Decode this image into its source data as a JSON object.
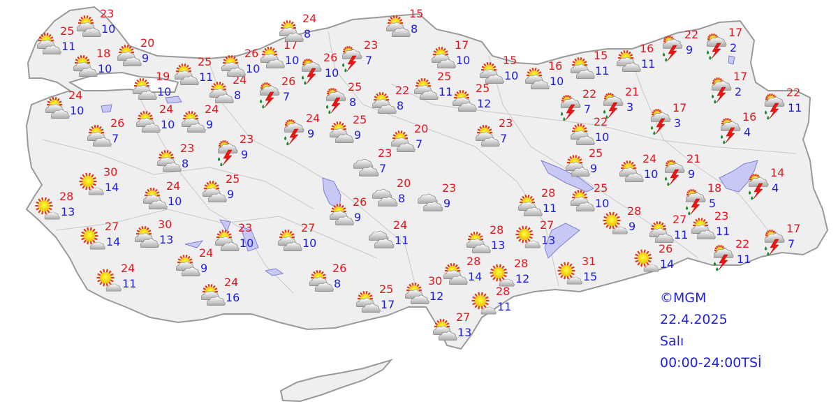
{
  "legend": {
    "copyright": "©MGM",
    "date": "22.4.2025",
    "day": "Salı",
    "period": "00:00-24:00TSİ"
  },
  "colors": {
    "max_temp": "#e3171f",
    "min_temp": "#1b1be3",
    "land": "#efefef",
    "water": "#c8c8f4"
  },
  "icon_types": [
    "partly-cloudy",
    "mostly-sunny",
    "thunderstorm-rain",
    "cloudy"
  ],
  "stations": [
    {
      "icon": "partly-cloudy",
      "max": 23,
      "min": 10
    },
    {
      "icon": "partly-cloudy",
      "max": 25,
      "min": 11
    },
    {
      "icon": "partly-cloudy",
      "max": 18,
      "min": 10
    },
    {
      "icon": "partly-cloudy",
      "max": 20,
      "min": 9
    },
    {
      "icon": "partly-cloudy",
      "max": 25,
      "min": 11
    },
    {
      "icon": "partly-cloudy",
      "max": 19,
      "min": 10
    },
    {
      "icon": "partly-cloudy",
      "max": 24,
      "min": 10
    },
    {
      "icon": "partly-cloudy",
      "max": 26,
      "min": 7
    },
    {
      "icon": "partly-cloudy",
      "max": 24,
      "min": 10
    },
    {
      "icon": "partly-cloudy",
      "max": 24,
      "min": 9
    },
    {
      "icon": "partly-cloudy",
      "max": 24,
      "min": 8
    },
    {
      "icon": "partly-cloudy",
      "max": 26,
      "min": 10
    },
    {
      "icon": "partly-cloudy",
      "max": 17,
      "min": 10
    },
    {
      "icon": "partly-cloudy",
      "max": 24,
      "min": 8
    },
    {
      "icon": "thunderstorm-rain",
      "max": 26,
      "min": 10
    },
    {
      "icon": "thunderstorm-rain",
      "max": 26,
      "min": 7
    },
    {
      "icon": "thunderstorm-rain",
      "max": 23,
      "min": 7
    },
    {
      "icon": "thunderstorm-rain",
      "max": 23,
      "min": 9
    },
    {
      "icon": "thunderstorm-rain",
      "max": 24,
      "min": 9
    },
    {
      "icon": "thunderstorm-rain",
      "max": 25,
      "min": 8
    },
    {
      "icon": "partly-cloudy",
      "max": 15,
      "min": 8
    },
    {
      "icon": "partly-cloudy",
      "max": 22,
      "min": 8
    },
    {
      "icon": "partly-cloudy",
      "max": 25,
      "min": 9
    },
    {
      "icon": "partly-cloudy",
      "max": 20,
      "min": 7
    },
    {
      "icon": "partly-cloudy",
      "max": 25,
      "min": 11
    },
    {
      "icon": "partly-cloudy",
      "max": 25,
      "min": 12
    },
    {
      "icon": "partly-cloudy",
      "max": 17,
      "min": 10
    },
    {
      "icon": "partly-cloudy",
      "max": 15,
      "min": 10
    },
    {
      "icon": "partly-cloudy",
      "max": 23,
      "min": 7
    },
    {
      "icon": "partly-cloudy",
      "max": 16,
      "min": 10
    },
    {
      "icon": "partly-cloudy",
      "max": 15,
      "min": 11
    },
    {
      "icon": "partly-cloudy",
      "max": 16,
      "min": 11
    },
    {
      "icon": "thunderstorm-rain",
      "max": 22,
      "min": 9
    },
    {
      "icon": "thunderstorm-rain",
      "max": 17,
      "min": 2
    },
    {
      "icon": "thunderstorm-rain",
      "max": 22,
      "min": 7
    },
    {
      "icon": "thunderstorm-rain",
      "max": 21,
      "min": 3
    },
    {
      "icon": "thunderstorm-rain",
      "max": 17,
      "min": 3
    },
    {
      "icon": "thunderstorm-rain",
      "max": 17,
      "min": 2
    },
    {
      "icon": "thunderstorm-rain",
      "max": 22,
      "min": 11
    },
    {
      "icon": "thunderstorm-rain",
      "max": 16,
      "min": 4
    },
    {
      "icon": "partly-cloudy",
      "max": 22,
      "min": 10
    },
    {
      "icon": "partly-cloudy",
      "max": 25,
      "min": 9
    },
    {
      "icon": "partly-cloudy",
      "max": 24,
      "min": 10
    },
    {
      "icon": "thunderstorm-rain",
      "max": 21,
      "min": 9
    },
    {
      "icon": "thunderstorm-rain",
      "max": 18,
      "min": 5
    },
    {
      "icon": "thunderstorm-rain",
      "max": 14,
      "min": 4
    },
    {
      "icon": "partly-cloudy",
      "max": 25,
      "min": 10
    },
    {
      "icon": "partly-cloudy",
      "max": 28,
      "min": 11
    },
    {
      "icon": "mostly-sunny",
      "max": 28,
      "min": 9
    },
    {
      "icon": "partly-cloudy",
      "max": 27,
      "min": 11
    },
    {
      "icon": "partly-cloudy",
      "max": 23,
      "min": 11
    },
    {
      "icon": "thunderstorm-rain",
      "max": 22,
      "min": 11
    },
    {
      "icon": "thunderstorm-rain",
      "max": 17,
      "min": 7
    },
    {
      "icon": "mostly-sunny",
      "max": 26,
      "min": 14
    },
    {
      "icon": "mostly-sunny",
      "max": 27,
      "min": 13
    },
    {
      "icon": "partly-cloudy",
      "max": 28,
      "min": 13
    },
    {
      "icon": "mostly-sunny",
      "max": 28,
      "min": 12
    },
    {
      "icon": "partly-cloudy",
      "max": 28,
      "min": 14
    },
    {
      "icon": "mostly-sunny",
      "max": 31,
      "min": 15
    },
    {
      "icon": "mostly-sunny",
      "max": 28,
      "min": 11
    },
    {
      "icon": "partly-cloudy",
      "max": 30,
      "min": 12
    },
    {
      "icon": "partly-cloudy",
      "max": 25,
      "min": 17
    },
    {
      "icon": "partly-cloudy",
      "max": 27,
      "min": 13
    },
    {
      "icon": "partly-cloudy",
      "max": 26,
      "min": 8
    },
    {
      "icon": "cloudy",
      "max": 23,
      "min": 7
    },
    {
      "icon": "cloudy",
      "max": 20,
      "min": 8
    },
    {
      "icon": "cloudy",
      "max": 23,
      "min": 9
    },
    {
      "icon": "cloudy",
      "max": 24,
      "min": 11
    },
    {
      "icon": "partly-cloudy",
      "max": 26,
      "min": 9
    },
    {
      "icon": "partly-cloudy",
      "max": 27,
      "min": 10
    },
    {
      "icon": "partly-cloudy",
      "max": 23,
      "min": 10
    },
    {
      "icon": "partly-cloudy",
      "max": 25,
      "min": 9
    },
    {
      "icon": "partly-cloudy",
      "max": 24,
      "min": 10
    },
    {
      "icon": "partly-cloudy",
      "max": 23,
      "min": 8
    },
    {
      "icon": "mostly-sunny",
      "max": 30,
      "min": 14
    },
    {
      "icon": "mostly-sunny",
      "max": 28,
      "min": 13
    },
    {
      "icon": "partly-cloudy",
      "max": 30,
      "min": 13
    },
    {
      "icon": "mostly-sunny",
      "max": 27,
      "min": 14
    },
    {
      "icon": "partly-cloudy",
      "max": 24,
      "min": 9
    },
    {
      "icon": "mostly-sunny",
      "max": 24,
      "min": 11
    },
    {
      "icon": "partly-cloudy",
      "max": 24,
      "min": 16
    }
  ]
}
